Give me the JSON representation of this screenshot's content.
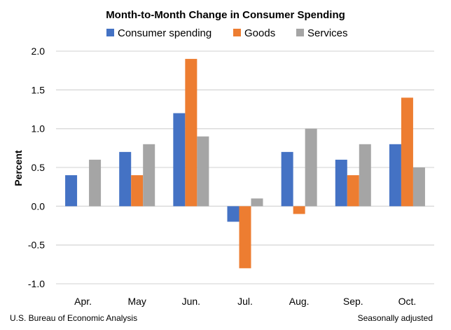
{
  "chart_data": {
    "type": "bar",
    "title": "Month-to-Month Change in Consumer Spending",
    "ylabel": "Percent",
    "xlabel": "",
    "categories": [
      "Apr.",
      "May",
      "Jun.",
      "Jul.",
      "Aug.",
      "Sep.",
      "Oct."
    ],
    "series": [
      {
        "name": "Consumer spending",
        "color": "#4472c4",
        "values": [
          0.4,
          0.7,
          1.2,
          -0.2,
          0.7,
          0.6,
          0.8
        ]
      },
      {
        "name": "Goods",
        "color": "#ed7d31",
        "values": [
          0.0,
          0.4,
          1.9,
          -0.8,
          -0.1,
          0.4,
          1.4
        ]
      },
      {
        "name": "Services",
        "color": "#a5a5a5",
        "values": [
          0.6,
          0.8,
          0.9,
          0.1,
          1.0,
          0.8,
          0.5
        ]
      }
    ],
    "ylim": [
      -1.0,
      2.0
    ],
    "yticks": [
      "2.0",
      "1.5",
      "1.0",
      "0.5",
      "0.0",
      "-0.5",
      "-1.0"
    ],
    "ytick_values": [
      2.0,
      1.5,
      1.0,
      0.5,
      0.0,
      -0.5,
      -1.0
    ],
    "grid": true,
    "legend_position": "top",
    "source": "U.S. Bureau of Economic Analysis",
    "note": "Seasonally adjusted"
  }
}
